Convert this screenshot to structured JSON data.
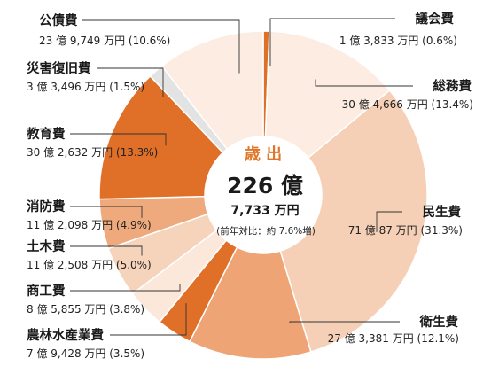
{
  "chart_data": {
    "type": "pie",
    "title": "歳 出",
    "total_line1": "226 億",
    "total_line2": "7,733 万円",
    "yoy": "(前年対比：約 7.6%増)",
    "slices": [
      {
        "name": "議会費",
        "amount": "1 億 3,833 万円",
        "pct_label": "(0.6%)",
        "value": 0.6,
        "color": "#e06f28"
      },
      {
        "name": "総務費",
        "amount": "30 億 4,666 万円",
        "pct_label": "(13.4%)",
        "value": 13.4,
        "color": "#fcece1"
      },
      {
        "name": "民生費",
        "amount": "71 億 87 万円",
        "pct_label": "(31.3%)",
        "value": 31.3,
        "color": "#f6d0b6"
      },
      {
        "name": "衛生費",
        "amount": "27 億 3,381 万円",
        "pct_label": "(12.1%)",
        "value": 12.1,
        "color": "#eea474"
      },
      {
        "name": "農林水産業費",
        "amount": "7 億 9,428 万円",
        "pct_label": "(3.5%)",
        "value": 3.5,
        "color": "#e06f28"
      },
      {
        "name": "商工費",
        "amount": "8 億 5,855 万円",
        "pct_label": "(3.8%)",
        "value": 3.8,
        "color": "#fbe8da"
      },
      {
        "name": "土木費",
        "amount": "11 億 2,508 万円",
        "pct_label": "(5.0%)",
        "value": 5.0,
        "color": "#f6d3bb"
      },
      {
        "name": "消防費",
        "amount": "11 億 2,098 万円",
        "pct_label": "(4.9%)",
        "value": 4.9,
        "color": "#eeaa7d"
      },
      {
        "name": "教育費",
        "amount": "30 億 2,632 万円",
        "pct_label": "(13.3%)",
        "value": 13.3,
        "color": "#e06f28"
      },
      {
        "name": "災害復旧費",
        "amount": "3 億 3,496 万円",
        "pct_label": "(1.5%)",
        "value": 1.5,
        "color": "#e3e3e3"
      },
      {
        "name": "公債費",
        "amount": "23 億 9,749 万円",
        "pct_label": "(10.6%)",
        "value": 10.6,
        "color": "#fcece1"
      }
    ]
  }
}
